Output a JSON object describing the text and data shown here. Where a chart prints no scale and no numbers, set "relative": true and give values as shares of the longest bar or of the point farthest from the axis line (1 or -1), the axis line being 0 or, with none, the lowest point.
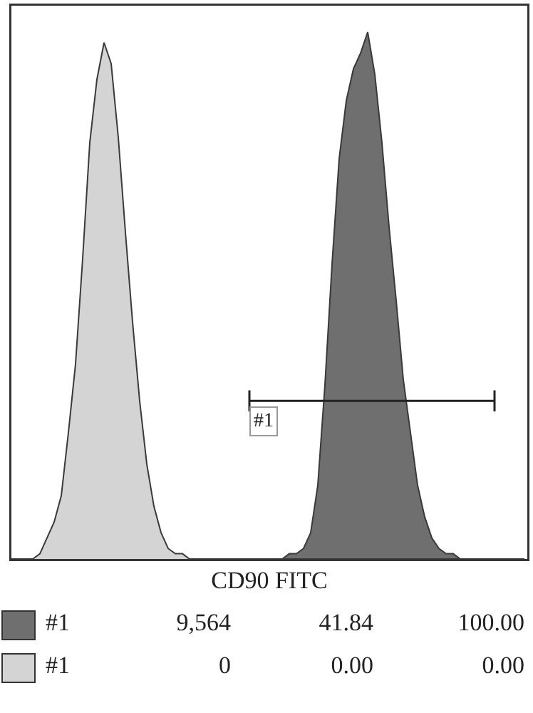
{
  "chart_data": {
    "type": "area",
    "relative": true,
    "xlabel": "CD90 FITC",
    "grid": false,
    "legend": "bottom",
    "categories": [
      null,
      null,
      null,
      null,
      null,
      null,
      null,
      null,
      null,
      null,
      null,
      null,
      null,
      null,
      null,
      null,
      null,
      null,
      null,
      null,
      null,
      null,
      null,
      null,
      null,
      null,
      null,
      null,
      null,
      null,
      null,
      null,
      null,
      null,
      null,
      null,
      null,
      null,
      null,
      null,
      null,
      null,
      null,
      null,
      null,
      null,
      null,
      null,
      null,
      null,
      null,
      null,
      null,
      null,
      null,
      null,
      null,
      null,
      null,
      null,
      null,
      null,
      null,
      null,
      null,
      null,
      null,
      null,
      null,
      null,
      null,
      null,
      null
    ],
    "series": [
      {
        "name": "#1",
        "color": "#6f6f6f",
        "values": [
          0,
          0,
          0,
          0,
          0,
          0,
          0,
          0,
          0,
          0,
          0,
          0,
          0,
          0,
          0,
          0,
          0,
          0,
          0,
          0,
          0,
          0,
          0,
          0,
          0,
          0,
          0,
          0,
          0,
          0,
          0,
          0,
          0,
          0,
          0,
          0,
          0,
          0,
          0,
          0.01,
          0.01,
          0.02,
          0.05,
          0.14,
          0.33,
          0.56,
          0.76,
          0.87,
          0.93,
          0.96,
          1,
          0.92,
          0.79,
          0.63,
          0.49,
          0.34,
          0.24,
          0.14,
          0.08,
          0.04,
          0.02,
          0.01,
          0.01,
          0,
          0,
          0,
          0,
          0,
          0,
          0,
          0,
          0,
          0
        ]
      },
      {
        "name": "#1",
        "color": "#d4d4d4",
        "values": [
          0,
          0,
          0,
          0,
          0.01,
          0.04,
          0.07,
          0.12,
          0.24,
          0.37,
          0.57,
          0.79,
          0.91,
          0.98,
          0.94,
          0.8,
          0.62,
          0.45,
          0.3,
          0.18,
          0.1,
          0.05,
          0.02,
          0.01,
          0.01,
          0,
          0,
          0,
          0,
          0,
          0,
          0,
          0,
          0,
          0,
          0,
          0,
          0,
          0,
          0,
          0,
          0,
          0,
          0,
          0,
          0,
          0,
          0,
          0,
          0,
          0,
          0,
          0,
          0,
          0,
          0,
          0,
          0,
          0,
          0,
          0,
          0,
          0,
          0,
          0,
          0,
          0,
          0,
          0,
          0,
          0,
          0,
          0
        ]
      }
    ],
    "annotations": [
      "#1",
      "9,564",
      "41.84",
      "100.00",
      "0",
      "0.00",
      "0.00"
    ]
  }
}
